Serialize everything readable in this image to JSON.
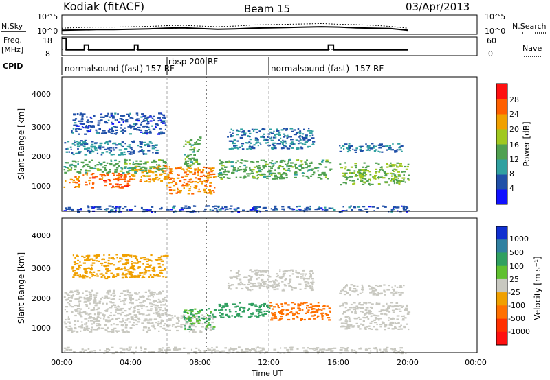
{
  "header": {
    "station": "Kodiak (fitACF)",
    "beam": "Beam 15",
    "date": "03/Apr/2013"
  },
  "strip_nsky": {
    "left_label": "N.Sky",
    "right_label": "N.Search",
    "left_ticks": [
      "10^5",
      "10^0"
    ],
    "right_ticks": [
      "10^5",
      "10^0"
    ]
  },
  "strip_freq": {
    "left_label_line1": "Freq.",
    "left_label_line2": "[MHz]",
    "right_label": "Nave",
    "left_ticks": [
      "18",
      "8"
    ],
    "right_ticks": [
      "60",
      "0"
    ]
  },
  "cpid": {
    "label": "CPID",
    "segments": [
      {
        "text": "normalsound (fast) 157 RF"
      },
      {
        "text": "rbsp 200 RF"
      },
      {
        "text": "normalsound (fast) -157 RF"
      }
    ]
  },
  "power_panel": {
    "ylabel": "Slant Range [km]",
    "yticks": [
      "1000",
      "2000",
      "3000",
      "4000"
    ],
    "colorbar_title": "Power [dB]",
    "colorbar_labels": [
      "4",
      "8",
      "12",
      "16",
      "20",
      "24",
      "28"
    ],
    "colorbar_colors": [
      "#1010ff",
      "#2050a8",
      "#30a0a0",
      "#50a050",
      "#a0c820",
      "#f0a000",
      "#ff6000",
      "#ff1010"
    ]
  },
  "velocity_panel": {
    "ylabel": "Slant Range [km]",
    "yticks": [
      "1000",
      "2000",
      "3000",
      "4000"
    ],
    "colorbar_title": "Velocity [m s⁻¹]",
    "colorbar_labels": [
      "1000",
      "500",
      "100",
      "25",
      "-25",
      "-100",
      "-500",
      "-1000"
    ],
    "colorbar_colors": [
      "#1030d0",
      "#3080a0",
      "#30a060",
      "#60c030",
      "#c8c8c0",
      "#f0a000",
      "#ff7000",
      "#ff3000",
      "#ff1010"
    ]
  },
  "xaxis": {
    "ticks": [
      "00:00",
      "04:00",
      "08:00",
      "12:00",
      "16:00",
      "20:00",
      "00:00"
    ],
    "label": "Time UT"
  },
  "chart_data": [
    {
      "type": "line",
      "name": "N.Sky / N.Search",
      "x_hours": [
        0,
        1,
        2,
        3,
        4,
        5,
        6,
        7,
        8,
        9,
        10,
        11,
        12,
        13,
        14,
        15,
        16,
        17,
        18,
        19,
        20
      ],
      "ylim_log10": [
        0,
        5
      ],
      "nsky_log10": [
        0.9,
        1.0,
        1.1,
        1.1,
        1.2,
        1.3,
        1.5,
        1.6,
        1.4,
        1.2,
        1.3,
        1.5,
        1.6,
        1.7,
        1.8,
        1.9,
        1.8,
        1.6,
        1.5,
        1.4,
        0.9
      ],
      "nsearch_log10": [
        1.5,
        1.7,
        1.8,
        1.8,
        1.9,
        2.0,
        2.2,
        2.3,
        2.1,
        1.9,
        2.1,
        2.4,
        2.5,
        2.6,
        2.7,
        2.8,
        2.6,
        2.5,
        2.3,
        2.0,
        1.5
      ],
      "xlim_hours": [
        0,
        24
      ]
    },
    {
      "type": "line",
      "name": "Freq / Nave",
      "x_hours": [
        0,
        0.25,
        0.25,
        1.3,
        1.3,
        1.55,
        1.55,
        4.2,
        4.2,
        4.4,
        4.4,
        15.4,
        15.4,
        15.7,
        15.7,
        20
      ],
      "freq_mhz": [
        18,
        18,
        11,
        11,
        14,
        14,
        11,
        11,
        14,
        14,
        11,
        11,
        14,
        14,
        11,
        11
      ],
      "nave_x_hours": [
        0,
        20
      ],
      "nave": [
        20,
        20
      ],
      "ylim_freq": [
        8,
        18
      ],
      "ylim_nave": [
        0,
        60
      ],
      "xlim_hours": [
        0,
        24
      ]
    },
    {
      "type": "heatmap",
      "name": "Power",
      "xlim_hours": [
        0,
        24
      ],
      "ylim_km": [
        0,
        4500
      ],
      "zlim_db": [
        0,
        32
      ],
      "bands": [
        {
          "t": [
            0.1,
            1.0
          ],
          "r": [
            800,
            1200
          ],
          "db": 24
        },
        {
          "t": [
            1.2,
            3.9
          ],
          "r": [
            800,
            1300
          ],
          "db": 26
        },
        {
          "t": [
            3.9,
            6.3
          ],
          "r": [
            1000,
            1550
          ],
          "db": 22
        },
        {
          "t": [
            0.1,
            6.0
          ],
          "r": [
            1300,
            1750
          ],
          "db": 14
        },
        {
          "t": [
            0.1,
            5.5
          ],
          "r": [
            1900,
            2400
          ],
          "db": 8
        },
        {
          "t": [
            0.5,
            6.0
          ],
          "r": [
            2600,
            3300
          ],
          "db": 6
        },
        {
          "t": [
            6.0,
            8.8
          ],
          "r": [
            600,
            1500
          ],
          "db": 24
        },
        {
          "t": [
            7.0,
            8.0
          ],
          "r": [
            1500,
            2500
          ],
          "db": 14
        },
        {
          "t": [
            9.0,
            15.5
          ],
          "r": [
            1100,
            1750
          ],
          "db": 14
        },
        {
          "t": [
            9.5,
            14.5
          ],
          "r": [
            2100,
            2800
          ],
          "db": 8
        },
        {
          "t": [
            16.0,
            20.0
          ],
          "r": [
            900,
            1650
          ],
          "db": 16
        },
        {
          "t": [
            16.0,
            19.8
          ],
          "r": [
            2000,
            2300
          ],
          "db": 8
        },
        {
          "t": [
            0.1,
            20.0
          ],
          "r": [
            0,
            200
          ],
          "db": 6
        }
      ]
    },
    {
      "type": "heatmap",
      "name": "Velocity",
      "xlim_hours": [
        0,
        24
      ],
      "ylim_km": [
        0,
        4500
      ],
      "zlim_ms": [
        -1000,
        1000
      ],
      "bands": [
        {
          "t": [
            0.1,
            6.0
          ],
          "r": [
            700,
            2100
          ],
          "v": 0
        },
        {
          "t": [
            0.5,
            6.0
          ],
          "r": [
            2500,
            3300
          ],
          "v": -40
        },
        {
          "t": [
            6.0,
            8.8
          ],
          "r": [
            700,
            1300
          ],
          "v": 0
        },
        {
          "t": [
            7.0,
            8.8
          ],
          "r": [
            800,
            1500
          ],
          "v": 100
        },
        {
          "t": [
            9.0,
            12.0
          ],
          "r": [
            1200,
            1700
          ],
          "v": 120
        },
        {
          "t": [
            12.0,
            15.5
          ],
          "r": [
            1100,
            1700
          ],
          "v": -120
        },
        {
          "t": [
            9.5,
            14.5
          ],
          "r": [
            2100,
            2800
          ],
          "v": 0
        },
        {
          "t": [
            16.0,
            20.0
          ],
          "r": [
            800,
            1700
          ],
          "v": 0
        },
        {
          "t": [
            16.0,
            19.8
          ],
          "r": [
            1950,
            2300
          ],
          "v": 0
        },
        {
          "t": [
            0.1,
            20.0
          ],
          "r": [
            0,
            200
          ],
          "v": 0
        }
      ]
    }
  ]
}
